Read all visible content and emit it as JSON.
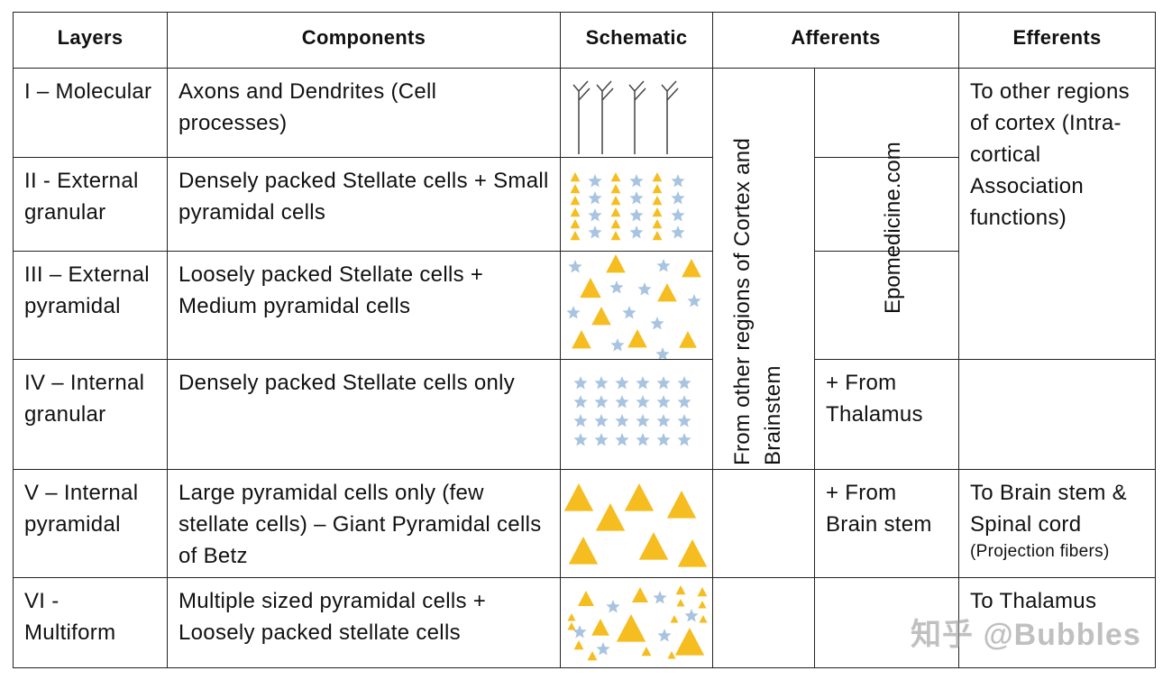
{
  "headers": {
    "layers": "Layers",
    "components": "Components",
    "schematic": "Schematic",
    "afferents": "Afferents",
    "efferents": "Efferents"
  },
  "rows": [
    {
      "layer": "I – Molecular",
      "components": "Axons and Dendrites (Cell processes)"
    },
    {
      "layer": "II - External granular",
      "components": "Densely packed Stellate cells + Small pyramidal cells"
    },
    {
      "layer": "III – External pyramidal",
      "components": "Loosely packed Stellate cells + Medium pyramidal cells"
    },
    {
      "layer": "IV – Internal granular",
      "components": "Densely packed Stellate cells only"
    },
    {
      "layer": "V – Internal pyramidal",
      "components": "Large pyramidal cells only (few stellate cells) – Giant Pyramidal cells of Betz"
    },
    {
      "layer": "VI - Multiform",
      "components": "Multiple sized pyramidal cells + Loosely packed stellate cells"
    }
  ],
  "afferents": {
    "cortex_brainstem": "From other regions of Cortex and Brainstem",
    "watermark": "Epomedicine.com",
    "thalamus": "+ From Thalamus",
    "brain_stem": "+ From Brain stem"
  },
  "efferents": {
    "association": "To other regions of cortex (Intra-cortical Association functions)",
    "projection_main": "To Brain stem & Spinal cord",
    "projection_note": "(Projection fibers)",
    "thalamus": "To Thalamus"
  },
  "overlay_watermark": "知乎 @Bubbles",
  "colors": {
    "pyramidal": "#f5bd1f",
    "stellate": "#a9c4e0"
  }
}
